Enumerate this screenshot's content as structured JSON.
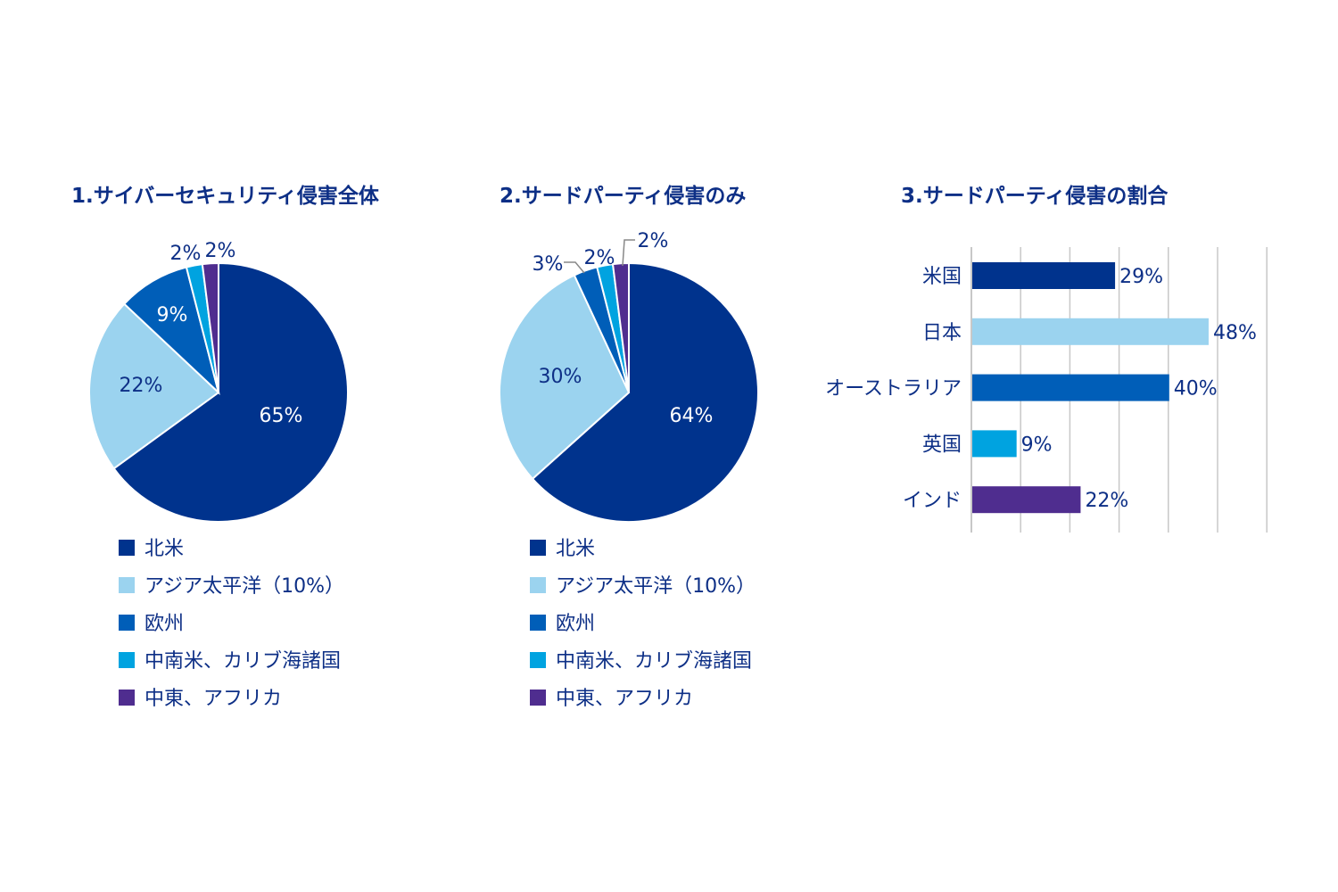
{
  "colors": {
    "north_america": "#00338d",
    "apac": "#9bd3ef",
    "europe": "#005eb8",
    "latam": "#00a3e0",
    "mea": "#4f2d8f",
    "text": "#0d2f86",
    "grid": "#c8c8c8"
  },
  "chart_data": [
    {
      "type": "pie",
      "title": "1.サイバーセキュリティ侵害全体",
      "slices": [
        {
          "label": "北米",
          "value": 65,
          "data_label": "65%",
          "color": "#00338d"
        },
        {
          "label": "アジア太平洋（10%）",
          "value": 22,
          "data_label": "22%",
          "color": "#9bd3ef"
        },
        {
          "label": "欧州",
          "value": 9,
          "data_label": "9%",
          "color": "#005eb8"
        },
        {
          "label": "中南米、カリブ海諸国",
          "value": 2,
          "data_label": "2%",
          "color": "#00a3e0"
        },
        {
          "label": "中東、アフリカ",
          "value": 2,
          "data_label": "2%",
          "color": "#4f2d8f"
        }
      ],
      "legend_placement": "bottom"
    },
    {
      "type": "pie",
      "title": "2.サードパーティ侵害のみ",
      "slices": [
        {
          "label": "北米",
          "value": 64,
          "data_label": "64%",
          "color": "#00338d"
        },
        {
          "label": "アジア太平洋（10%）",
          "value": 30,
          "data_label": "30%",
          "color": "#9bd3ef"
        },
        {
          "label": "欧州",
          "value": 3,
          "data_label": "3%",
          "color": "#005eb8"
        },
        {
          "label": "中南米、カリブ海諸国",
          "value": 2,
          "data_label": "2%",
          "color": "#00a3e0"
        },
        {
          "label": "中東、アフリカ",
          "value": 2,
          "data_label": "2%",
          "color": "#4f2d8f"
        }
      ],
      "legend_placement": "bottom"
    },
    {
      "type": "bar",
      "orientation": "horizontal",
      "title": "3.サードパーティ侵害の割合",
      "categories": [
        "米国",
        "日本",
        "オーストラリア",
        "英国",
        "インド"
      ],
      "values": [
        29,
        48,
        40,
        9,
        22
      ],
      "data_labels": [
        "29%",
        "48%",
        "40%",
        "9%",
        "22%"
      ],
      "colors": [
        "#00338d",
        "#9bd3ef",
        "#005eb8",
        "#00a3e0",
        "#4f2d8f"
      ],
      "xlim": [
        0,
        60
      ],
      "grid": true
    }
  ]
}
